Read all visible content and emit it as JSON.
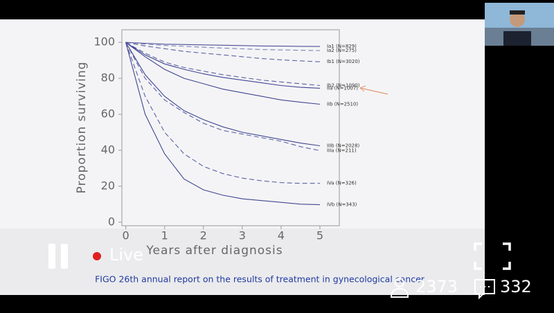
{
  "chart_data": {
    "type": "line",
    "x_label": "Years after diagnosis",
    "y_label": "Proportion surviving",
    "x": [
      0,
      0.5,
      1,
      1.5,
      2,
      2.5,
      3,
      3.5,
      4,
      4.5,
      5
    ],
    "xlim": [
      -0.1,
      5.5
    ],
    "xticks": [
      0,
      1,
      2,
      3,
      4,
      5
    ],
    "ylim": [
      -2,
      107
    ],
    "yticks": [
      0,
      20,
      40,
      60,
      80,
      100
    ],
    "series": [
      {
        "name": "Ia1 (N=829)",
        "color": "#4a5196",
        "dashed": false,
        "values": [
          100,
          99.5,
          99,
          98.8,
          98.6,
          98.4,
          98.2,
          98,
          97.9,
          97.8,
          97.7
        ]
      },
      {
        "name": "Ia2 (N=275)",
        "color": "#7d83b8",
        "dashed": true,
        "values": [
          100,
          99,
          98.3,
          97.8,
          97.3,
          96.8,
          96.4,
          96,
          95.8,
          95.6,
          95.4
        ]
      },
      {
        "name": "Ib1 (N=3020)",
        "color": "#5a60a3",
        "dashed": true,
        "values": [
          100,
          98,
          96.5,
          95,
          94,
          93,
          92,
          91,
          90.3,
          89.7,
          89.2
        ]
      },
      {
        "name": "Ib2 (N=1090)",
        "color": "#5a60a3",
        "dashed": true,
        "values": [
          100,
          94,
          89,
          86,
          84,
          82,
          80.5,
          79,
          78,
          77,
          76
        ]
      },
      {
        "name": "IIa (N=1007)",
        "color": "#3f4690",
        "dashed": false,
        "values": [
          100,
          93,
          88,
          85,
          82.5,
          80.5,
          79,
          77.5,
          76,
          75,
          74.5
        ]
      },
      {
        "name": "IIb (N=2510)",
        "color": "#3f4690",
        "dashed": false,
        "values": [
          100,
          92,
          85,
          80,
          77,
          74,
          72,
          70,
          68,
          66.7,
          65.6
        ]
      },
      {
        "name": "IIIb (N=2028)",
        "color": "#3f4690",
        "dashed": false,
        "values": [
          100,
          82,
          70,
          62,
          57,
          53,
          50,
          48,
          46,
          44,
          42.5
        ]
      },
      {
        "name": "IIIa (N=211)",
        "color": "#5a60a3",
        "dashed": true,
        "values": [
          100,
          80,
          68,
          61,
          55,
          51,
          49,
          47,
          45,
          42,
          39.8
        ]
      },
      {
        "name": "IVa (N=326)",
        "color": "#5a60a3",
        "dashed": true,
        "values": [
          100,
          70,
          50,
          38,
          31,
          27,
          24.5,
          23,
          22,
          21.6,
          21.6
        ]
      },
      {
        "name": "IVb (N=343)",
        "color": "#3f4690",
        "dashed": false,
        "values": [
          100,
          60,
          38,
          24,
          18,
          15,
          13,
          12,
          11,
          10,
          9.7
        ]
      }
    ]
  },
  "ui": {
    "caption": "FIGO 26th annual report on the results of treatment in gynecological cancer",
    "live": "Live",
    "viewers": "2373",
    "comments": "332"
  }
}
